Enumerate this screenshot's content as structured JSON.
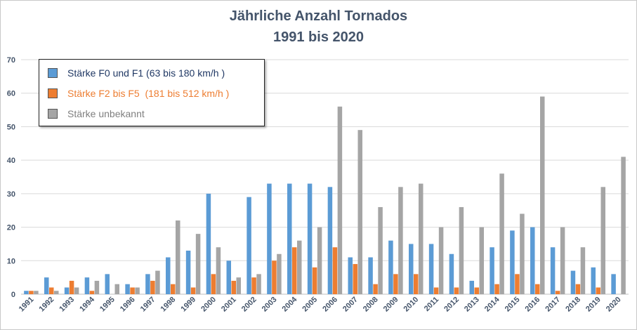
{
  "chart_data": {
    "type": "bar",
    "title": "Jährliche Anzahl Tornados",
    "subtitle": "1991 bis 2020",
    "ylim": [
      0,
      70
    ],
    "yticks": [
      0,
      10,
      20,
      30,
      40,
      50,
      60,
      70
    ],
    "grid": true,
    "legend_position": "top-left",
    "categories": [
      "1991",
      "1992",
      "1993",
      "1994",
      "1995",
      "1996",
      "1997",
      "1998",
      "1999",
      "2000",
      "2001",
      "2002",
      "2003",
      "2004",
      "2005",
      "2006",
      "2007",
      "2008",
      "2009",
      "2010",
      "2011",
      "2012",
      "2013",
      "2014",
      "2015",
      "2016",
      "2017",
      "2018",
      "2019",
      "2020"
    ],
    "series": [
      {
        "name": "Stärke F0 und F1 (63 bis 180 km/h )",
        "color": "#5b9bd5",
        "values": [
          1,
          5,
          2,
          5,
          6,
          3,
          6,
          11,
          13,
          30,
          10,
          29,
          33,
          33,
          33,
          32,
          11,
          11,
          16,
          15,
          15,
          12,
          4,
          14,
          19,
          20,
          14,
          7,
          8,
          6
        ]
      },
      {
        "name": "Stärke F2 bis F5  (181 bis 512 km/h )",
        "color": "#ed7d31",
        "values": [
          1,
          2,
          4,
          1,
          0,
          2,
          4,
          3,
          2,
          6,
          4,
          5,
          10,
          14,
          8,
          14,
          9,
          3,
          6,
          6,
          2,
          2,
          2,
          3,
          6,
          3,
          1,
          3,
          2,
          0
        ]
      },
      {
        "name": "Stärke unbekannt",
        "color": "#a5a5a5",
        "values": [
          1,
          1,
          2,
          4,
          3,
          2,
          7,
          22,
          18,
          14,
          5,
          6,
          12,
          16,
          20,
          56,
          49,
          26,
          32,
          33,
          20,
          26,
          20,
          36,
          24,
          59,
          20,
          14,
          32,
          41
        ]
      }
    ]
  },
  "legend_text_colors": [
    "#203864",
    "#ed7d31",
    "#7f7f7f"
  ]
}
